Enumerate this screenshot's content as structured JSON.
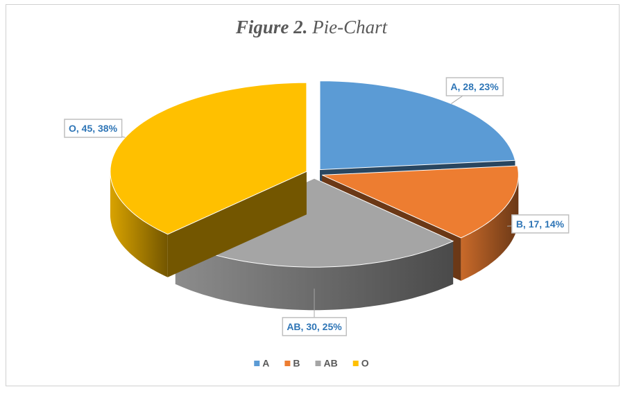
{
  "chart_data": {
    "type": "pie3d",
    "title_label": "Figure 2.",
    "title": "Pie-Chart",
    "categories": [
      "A",
      "B",
      "AB",
      "O"
    ],
    "values": [
      28,
      17,
      30,
      45
    ],
    "value_labels": [
      "A, 28, 23%",
      "B, 17, 14%",
      "AB, 30, 25%",
      "O, 45, 38%"
    ],
    "colors": [
      "#5b9bd5",
      "#ed7d31",
      "#a5a5a5",
      "#ffc000"
    ],
    "legend": "bottom"
  }
}
